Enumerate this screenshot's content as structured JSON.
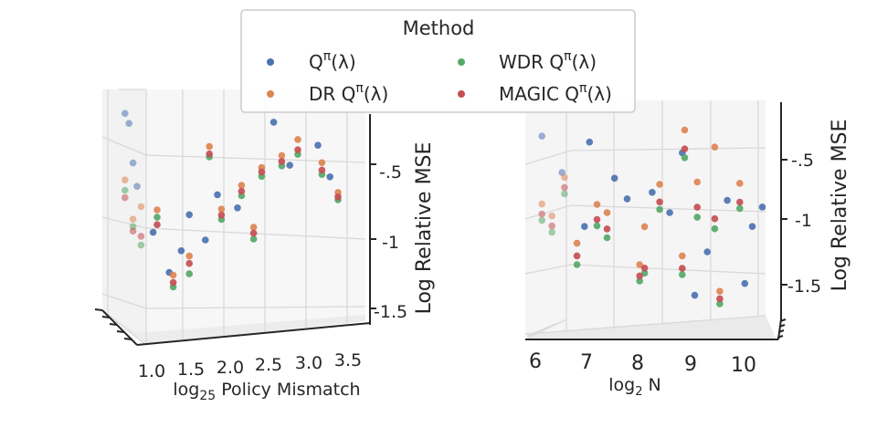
{
  "chart_data": [
    {
      "type": "scatter",
      "subtype": "3d",
      "title": "",
      "xlabel_prefix": "log",
      "xlabel_sub": "25",
      "xlabel_suffix": " Policy Mismatch",
      "zlabel": "Log Relative MSE",
      "x_ticks": [
        "1.0",
        "1.5",
        "2.0",
        "2.5",
        "3.0",
        "3.5"
      ],
      "z_ticks": [
        "-.5",
        "-1",
        "-1.5"
      ],
      "xlim": [
        0.8,
        3.8
      ],
      "zlim": [
        -1.7,
        -0.2
      ],
      "series": [
        {
          "name": "Q^π(λ)",
          "points": [
            [
              0.9,
              -0.28
            ],
            [
              0.95,
              -0.35
            ],
            [
              1.0,
              -0.62
            ],
            [
              1.05,
              -0.78
            ],
            [
              1.25,
              -1.1
            ],
            [
              1.45,
              -1.38
            ],
            [
              1.6,
              -1.24
            ],
            [
              1.7,
              -1.0
            ],
            [
              1.9,
              -1.18
            ],
            [
              2.05,
              -0.88
            ],
            [
              2.3,
              -0.98
            ],
            [
              2.75,
              -0.42
            ],
            [
              2.95,
              -0.72
            ],
            [
              3.3,
              -0.6
            ],
            [
              3.45,
              -0.82
            ]
          ]
        },
        {
          "name": "DR Q^π(λ)",
          "points": [
            [
              0.9,
              -0.73
            ],
            [
              1.0,
              -1.0
            ],
            [
              1.1,
              -0.92
            ],
            [
              1.3,
              -0.95
            ],
            [
              1.5,
              -1.4
            ],
            [
              1.7,
              -1.28
            ],
            [
              1.95,
              -0.55
            ],
            [
              2.1,
              -0.98
            ],
            [
              2.35,
              -0.83
            ],
            [
              2.5,
              -1.12
            ],
            [
              2.6,
              -0.72
            ],
            [
              2.85,
              -0.65
            ],
            [
              3.05,
              -0.55
            ],
            [
              3.35,
              -0.72
            ],
            [
              3.55,
              -0.93
            ]
          ]
        },
        {
          "name": "WDR Q^π(λ)",
          "points": [
            [
              0.9,
              -0.8
            ],
            [
              1.0,
              -1.05
            ],
            [
              1.1,
              -1.18
            ],
            [
              1.3,
              -1.0
            ],
            [
              1.5,
              -1.48
            ],
            [
              1.7,
              -1.4
            ],
            [
              1.95,
              -0.62
            ],
            [
              2.1,
              -1.05
            ],
            [
              2.35,
              -0.9
            ],
            [
              2.5,
              -1.2
            ],
            [
              2.6,
              -0.78
            ],
            [
              2.85,
              -0.72
            ],
            [
              3.05,
              -0.65
            ],
            [
              3.35,
              -0.8
            ],
            [
              3.55,
              -0.98
            ]
          ]
        },
        {
          "name": "MAGIC Q^π(λ)",
          "points": [
            [
              0.9,
              -0.85
            ],
            [
              1.0,
              -1.08
            ],
            [
              1.1,
              -1.12
            ],
            [
              1.3,
              -1.05
            ],
            [
              1.5,
              -1.45
            ],
            [
              1.7,
              -1.33
            ],
            [
              1.95,
              -0.6
            ],
            [
              2.1,
              -1.02
            ],
            [
              2.35,
              -0.87
            ],
            [
              2.5,
              -1.16
            ],
            [
              2.6,
              -0.75
            ],
            [
              2.85,
              -0.69
            ],
            [
              3.05,
              -0.62
            ],
            [
              3.35,
              -0.77
            ],
            [
              3.55,
              -0.96
            ]
          ]
        }
      ]
    },
    {
      "type": "scatter",
      "subtype": "3d",
      "title": "",
      "xlabel_prefix": "log",
      "xlabel_sub": "2",
      "xlabel_suffix": " N",
      "zlabel": "Log Relative MSE",
      "x_ticks": [
        "6",
        "7",
        "8",
        "9",
        "10"
      ],
      "z_ticks": [
        "-.5",
        "-1",
        "-1.5"
      ],
      "xlim": [
        5.75,
        10.4
      ],
      "zlim": [
        -1.75,
        -0.05
      ],
      "series": [
        {
          "name": "Q^π(λ)",
          "points": [
            [
              5.9,
              -0.28
            ],
            [
              6.85,
              -0.35
            ],
            [
              7.35,
              -0.65
            ],
            [
              8.1,
              -0.78
            ],
            [
              9.2,
              -1.28
            ],
            [
              9.95,
              -1.55
            ],
            [
              10.1,
              -1.1
            ],
            [
              6.3,
              -0.58
            ],
            [
              7.6,
              -0.82
            ],
            [
              8.45,
              -0.95
            ],
            [
              8.95,
              -1.62
            ],
            [
              6.75,
              -1.02
            ],
            [
              9.6,
              -0.88
            ],
            [
              10.3,
              -0.95
            ],
            [
              8.7,
              -0.48
            ]
          ]
        },
        {
          "name": "DR Q^π(λ)",
          "points": [
            [
              5.9,
              -0.82
            ],
            [
              6.6,
              -1.15
            ],
            [
              7.2,
              -0.92
            ],
            [
              7.95,
              -1.05
            ],
            [
              8.7,
              -1.3
            ],
            [
              9.45,
              -1.6
            ],
            [
              6.1,
              -0.92
            ],
            [
              7.0,
              -0.85
            ],
            [
              7.85,
              -1.35
            ],
            [
              9.0,
              -0.72
            ],
            [
              9.85,
              -0.75
            ],
            [
              6.35,
              -0.62
            ],
            [
              8.25,
              -0.72
            ],
            [
              8.75,
              -0.3
            ],
            [
              9.35,
              -0.45
            ]
          ]
        },
        {
          "name": "WDR Q^π(λ)",
          "points": [
            [
              5.9,
              -0.95
            ],
            [
              6.6,
              -1.32
            ],
            [
              7.2,
              -1.12
            ],
            [
              7.95,
              -1.42
            ],
            [
              8.7,
              -1.45
            ],
            [
              9.45,
              -1.7
            ],
            [
              6.1,
              -1.05
            ],
            [
              7.0,
              -1.02
            ],
            [
              7.85,
              -1.48
            ],
            [
              9.0,
              -1.0
            ],
            [
              9.85,
              -0.95
            ],
            [
              6.35,
              -0.75
            ],
            [
              8.25,
              -0.92
            ],
            [
              8.75,
              -0.52
            ],
            [
              9.35,
              -1.1
            ]
          ]
        },
        {
          "name": "MAGIC Q^π(λ)",
          "points": [
            [
              5.9,
              -0.9
            ],
            [
              6.6,
              -1.25
            ],
            [
              7.2,
              -1.05
            ],
            [
              7.95,
              -1.38
            ],
            [
              8.7,
              -1.4
            ],
            [
              9.45,
              -1.66
            ],
            [
              6.1,
              -1.0
            ],
            [
              7.0,
              -0.97
            ],
            [
              7.85,
              -1.44
            ],
            [
              9.0,
              -0.92
            ],
            [
              9.85,
              -0.9
            ],
            [
              6.35,
              -0.7
            ],
            [
              8.25,
              -0.86
            ],
            [
              8.75,
              -0.45
            ],
            [
              9.35,
              -1.02
            ]
          ]
        }
      ]
    }
  ],
  "legend": {
    "title": "Method",
    "position": "top-center",
    "entries": [
      {
        "label": "Q",
        "sup": "π",
        "suffix": "(λ)",
        "color": "#4c72b0"
      },
      {
        "label": "DR Q",
        "sup": "π",
        "suffix": "(λ)",
        "color": "#dd8452"
      },
      {
        "label": "WDR Q",
        "sup": "π",
        "suffix": "(λ)",
        "color": "#55a868"
      },
      {
        "label": "MAGIC Q",
        "sup": "π",
        "suffix": "(λ)",
        "color": "#c44e52"
      }
    ]
  },
  "colors": {
    "grid": "#d9d9d9",
    "pane_left": "#f2f2f2",
    "pane_back": "#f7f7f7",
    "pane_floor": "#ececec",
    "axis": "#262626"
  }
}
